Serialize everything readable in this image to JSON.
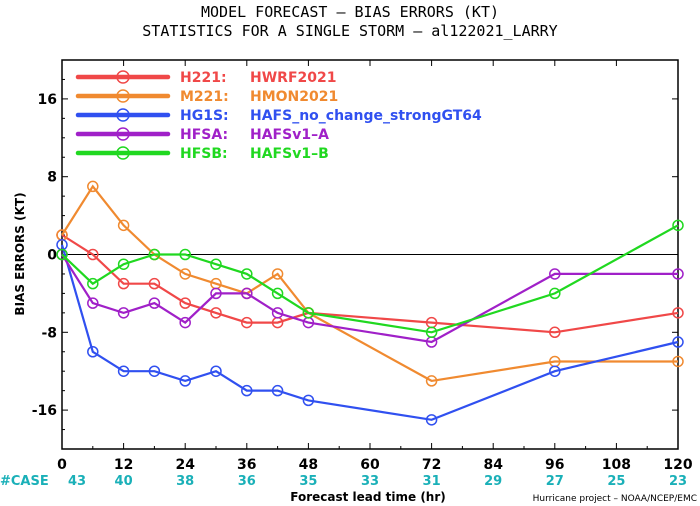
{
  "chart_data": {
    "type": "line",
    "title": "MODEL FORECAST – BIAS ERRORS (KT)",
    "subtitle": "STATISTICS FOR A SINGLE STORM – al122021_LARRY",
    "xlabel": "Forecast lead time (hr)",
    "ylabel": "BIAS ERRORS (KT)",
    "xlim": [
      0,
      120
    ],
    "ylim": [
      -20,
      20
    ],
    "x_ticks": [
      0,
      12,
      24,
      36,
      48,
      60,
      72,
      84,
      96,
      108,
      120
    ],
    "y_ticks": [
      -16,
      -8,
      0,
      8,
      16
    ],
    "case_label": "#CASE",
    "cases": [
      {
        "x": 0,
        "n": "43"
      },
      {
        "x": 12,
        "n": "40"
      },
      {
        "x": 24,
        "n": "38"
      },
      {
        "x": 36,
        "n": "36"
      },
      {
        "x": 48,
        "n": "35"
      },
      {
        "x": 60,
        "n": "33"
      },
      {
        "x": 72,
        "n": "31"
      },
      {
        "x": 84,
        "n": "29"
      },
      {
        "x": 96,
        "n": "27"
      },
      {
        "x": 108,
        "n": "25"
      },
      {
        "x": 120,
        "n": "23"
      }
    ],
    "credit": "Hurricane project – NOAA/NCEP/EMC",
    "grid": false,
    "legend_position": "top-left",
    "series": [
      {
        "code": "H221:",
        "name": "HWRF2021",
        "color": "#f04848",
        "points": [
          [
            0,
            2
          ],
          [
            6,
            0
          ],
          [
            12,
            -3
          ],
          [
            18,
            -3
          ],
          [
            24,
            -5
          ],
          [
            30,
            -6
          ],
          [
            36,
            -7
          ],
          [
            42,
            -7
          ],
          [
            48,
            -6
          ],
          [
            72,
            -7
          ],
          [
            96,
            -8
          ],
          [
            120,
            -6
          ]
        ]
      },
      {
        "code": "M221:",
        "name": "HMON2021",
        "color": "#f08a30",
        "points": [
          [
            0,
            2
          ],
          [
            6,
            7
          ],
          [
            12,
            3
          ],
          [
            18,
            0
          ],
          [
            24,
            -2
          ],
          [
            30,
            -3
          ],
          [
            36,
            -4
          ],
          [
            42,
            -2
          ],
          [
            48,
            -6
          ],
          [
            72,
            -13
          ],
          [
            96,
            -11
          ],
          [
            120,
            -11
          ]
        ]
      },
      {
        "code": "HG1S:",
        "name": "HAFS_no_change_strongGT64",
        "color": "#3050f0",
        "points": [
          [
            0,
            1
          ],
          [
            6,
            -10
          ],
          [
            12,
            -12
          ],
          [
            18,
            -12
          ],
          [
            24,
            -13
          ],
          [
            30,
            -12
          ],
          [
            36,
            -14
          ],
          [
            42,
            -14
          ],
          [
            48,
            -15
          ],
          [
            72,
            -17
          ],
          [
            96,
            -12
          ],
          [
            120,
            -9
          ]
        ]
      },
      {
        "code": "HFSA:",
        "name": "HAFSv1–A",
        "color": "#a020c8",
        "points": [
          [
            0,
            0
          ],
          [
            6,
            -5
          ],
          [
            12,
            -6
          ],
          [
            18,
            -5
          ],
          [
            24,
            -7
          ],
          [
            30,
            -4
          ],
          [
            36,
            -4
          ],
          [
            42,
            -6
          ],
          [
            48,
            -7
          ],
          [
            72,
            -9
          ],
          [
            96,
            -2
          ],
          [
            120,
            -2
          ]
        ]
      },
      {
        "code": "HFSB:",
        "name": "HAFSv1–B",
        "color": "#20d820",
        "points": [
          [
            0,
            0
          ],
          [
            6,
            -3
          ],
          [
            12,
            -1
          ],
          [
            18,
            0
          ],
          [
            24,
            0
          ],
          [
            30,
            -1
          ],
          [
            36,
            -2
          ],
          [
            42,
            -4
          ],
          [
            48,
            -6
          ],
          [
            72,
            -8
          ],
          [
            96,
            -4
          ],
          [
            120,
            3
          ]
        ]
      }
    ]
  }
}
